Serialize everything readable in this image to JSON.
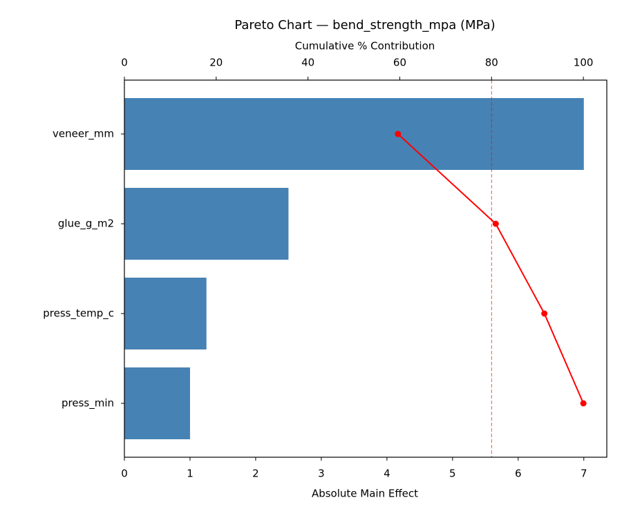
{
  "chart_data": {
    "type": "bar",
    "orientation": "horizontal",
    "title": "Pareto Chart — bend_strength_mpa (MPa)",
    "xlabel": "Absolute Main Effect",
    "x2label": "Cumulative % Contribution",
    "categories": [
      "veneer_mm",
      "glue_g_m2",
      "press_temp_c",
      "press_min"
    ],
    "series": [
      {
        "name": "Absolute Main Effect",
        "color": "#4682b4",
        "values": [
          7.0,
          2.5,
          1.25,
          1.0
        ]
      },
      {
        "name": "Cumulative %",
        "color": "#ff0000",
        "axis": "x2",
        "values": [
          59.6,
          80.9,
          91.5,
          100
        ]
      }
    ],
    "threshold": 80,
    "xlim": [
      0,
      7.35
    ],
    "xticks": [
      0,
      1,
      2,
      3,
      4,
      5,
      6,
      7
    ],
    "x2lim": [
      0,
      105.1
    ],
    "x2ticks": [
      0,
      20,
      40,
      60,
      80,
      100
    ]
  }
}
